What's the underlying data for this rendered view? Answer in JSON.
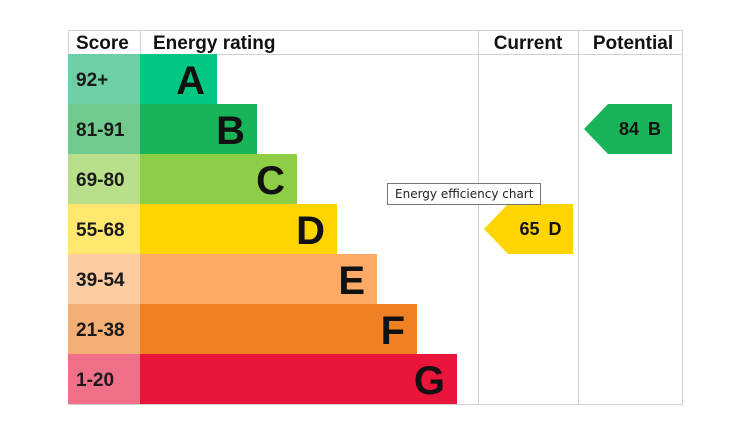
{
  "headers": {
    "score": "Score",
    "energy_rating": "Energy rating",
    "current": "Current",
    "potential": "Potential"
  },
  "tooltip": "Energy efficiency chart",
  "chart_data": {
    "type": "bar",
    "title": "",
    "bands": [
      {
        "letter": "A",
        "range": "92+",
        "color": "#00c781",
        "score_color": "#6ecfa6"
      },
      {
        "letter": "B",
        "range": "81-91",
        "color": "#19b459",
        "score_color": "#70cc8e"
      },
      {
        "letter": "C",
        "range": "69-80",
        "color": "#8dce46",
        "score_color": "#badf8b"
      },
      {
        "letter": "D",
        "range": "55-68",
        "color": "#ffd500",
        "score_color": "#ffe770"
      },
      {
        "letter": "E",
        "range": "39-54",
        "color": "#fcaa65",
        "score_color": "#fccca3"
      },
      {
        "letter": "F",
        "range": "21-38",
        "color": "#ef8023",
        "score_color": "#f5ae73"
      },
      {
        "letter": "G",
        "range": "1-20",
        "color": "#e9153b",
        "score_color": "#f07089"
      }
    ],
    "current": {
      "value": 65,
      "band": "D",
      "label": "65 D",
      "color": "#ffd500"
    },
    "potential": {
      "value": 84,
      "band": "B",
      "label": "84 B",
      "color": "#19b459"
    }
  }
}
